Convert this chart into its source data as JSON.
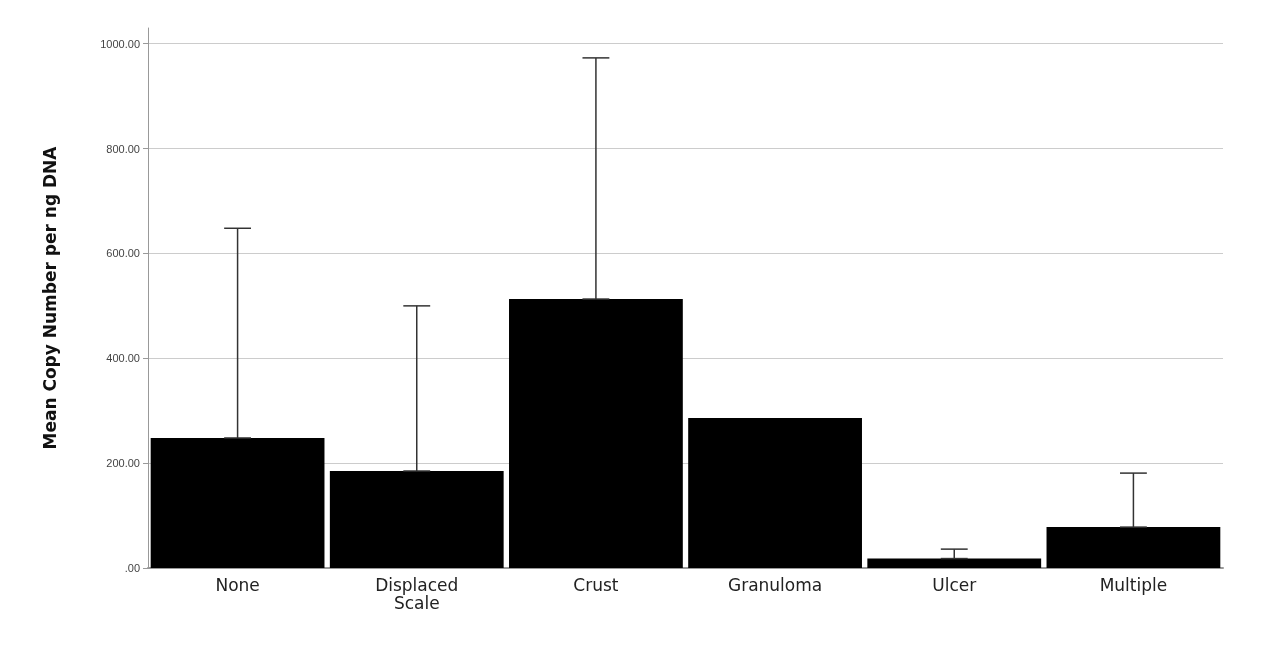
{
  "chart_data": {
    "type": "bar",
    "ylabel": "Mean Copy Number per ng DNA",
    "categories": [
      "None",
      "Displaced\nScale",
      "Crust",
      "Granuloma",
      "Ulcer",
      "Multiple"
    ],
    "values": [
      248,
      185,
      513,
      286,
      18,
      78
    ],
    "errors": [
      [
        248,
        648
      ],
      [
        185,
        500
      ],
      [
        513,
        973
      ],
      null,
      [
        18,
        36
      ],
      [
        78,
        181
      ]
    ],
    "color": "#000000",
    "ylim": [
      0,
      1030
    ],
    "yticks": [
      {
        "value": 0,
        "label": ".00"
      },
      {
        "value": 200,
        "label": "200.00"
      },
      {
        "value": 400,
        "label": "400.00"
      },
      {
        "value": 600,
        "label": "600.00"
      },
      {
        "value": 800,
        "label": "800.00"
      },
      {
        "value": 1000,
        "label": "1000.00"
      }
    ],
    "grid": "y"
  }
}
